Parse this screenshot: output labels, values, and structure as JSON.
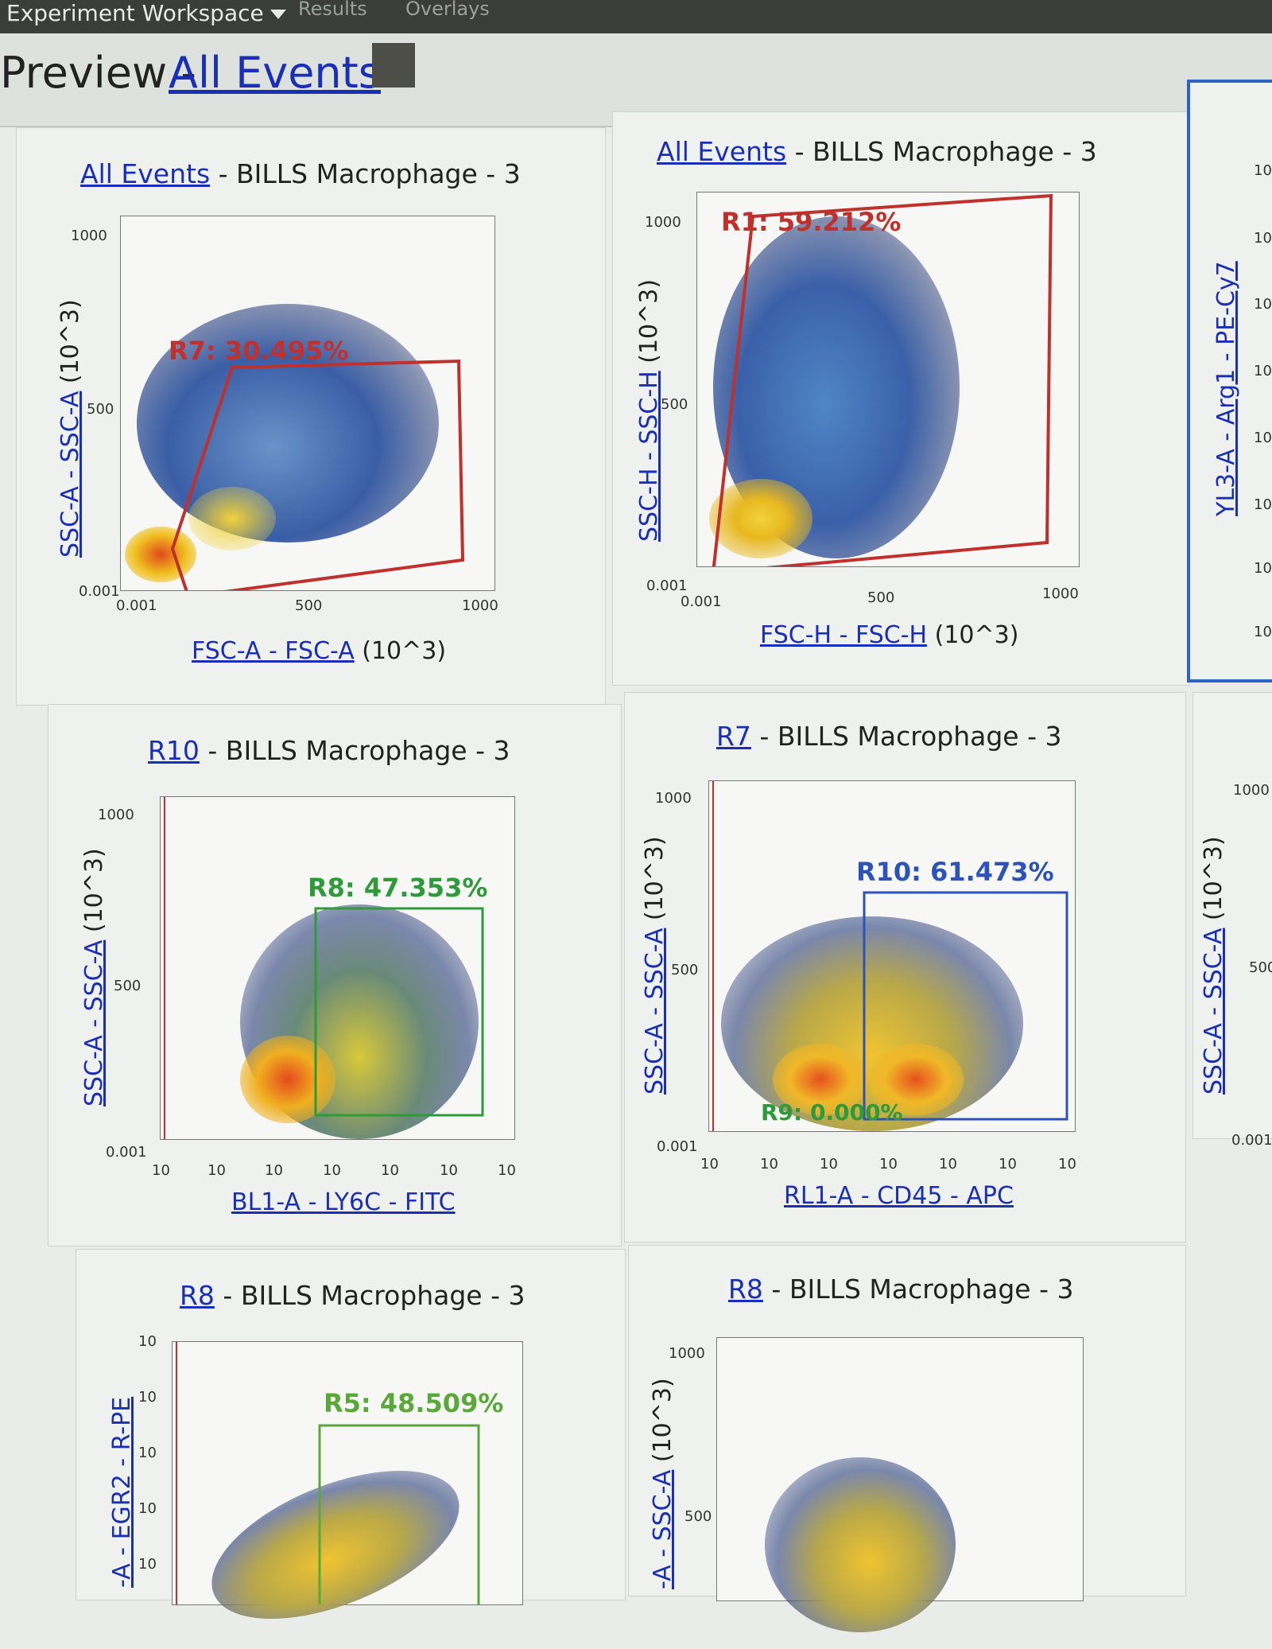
{
  "workspace": {
    "title": "Experiment Workspace",
    "tabs": [
      "Results",
      "Overlays"
    ]
  },
  "preview": {
    "label": "Preview - ",
    "link": "All Events"
  },
  "panels": [
    {
      "parent": "All Events",
      "sample": " - BILLS Macrophage - 3",
      "ylabel_link": "SSC-A - SSC-A",
      "ylabel_unit": " (10^3)",
      "xlabel_link": "FSC-A - FSC-A",
      "xlabel_unit": " (10^3)",
      "y_ticks": [
        "1000",
        "500",
        "0.001"
      ],
      "x_ticks": [
        "0.001",
        "500",
        "1000"
      ],
      "gate": "R7: 30.495%"
    },
    {
      "parent": "All Events",
      "sample": " - BILLS Macrophage - 3",
      "ylabel_link": "SSC-H - SSC-H",
      "ylabel_unit": " (10^3)",
      "xlabel_link": "FSC-H - FSC-H",
      "xlabel_unit": " (10^3)",
      "y_ticks": [
        "1000",
        "500",
        "0.001"
      ],
      "x_ticks": [
        "0.001",
        "500",
        "1000"
      ],
      "gate": "R1: 59.212%"
    },
    {
      "parent": "R10",
      "sample": " - BILLS Macrophage - 3",
      "ylabel_link": "SSC-A - SSC-A",
      "ylabel_unit": " (10^3)",
      "xlabel_link": "BL1-A - LY6C - FITC",
      "y_ticks": [
        "1000",
        "500",
        "0.001"
      ],
      "x_ticks": [
        "10",
        "10",
        "10",
        "10",
        "10",
        "10",
        "10"
      ],
      "gate": "R8: 47.353%"
    },
    {
      "parent": "R7",
      "sample": " - BILLS Macrophage - 3",
      "ylabel_link": "SSC-A - SSC-A",
      "ylabel_unit": " (10^3)",
      "xlabel_link": "RL1-A - CD45 - APC",
      "y_ticks": [
        "1000",
        "500",
        "0.001"
      ],
      "x_ticks": [
        "10",
        "10",
        "10",
        "10",
        "10",
        "10",
        "10"
      ],
      "gate": "R10: 61.473%",
      "gate2": "R9: 0.000%"
    },
    {
      "parent": "R8",
      "sample": " - BILLS Macrophage - 3",
      "ylabel_link": "-A - EGR2 - R-PE",
      "y_ticks": [
        "10",
        "10",
        "10",
        "10",
        "10"
      ],
      "gate": "R5: 48.509%"
    },
    {
      "parent": "R8",
      "sample": " - BILLS Macrophage - 3",
      "ylabel_link": "-A - SSC-A",
      "ylabel_unit": " (10^3)",
      "y_ticks": [
        "1000",
        "500"
      ]
    }
  ],
  "side": {
    "top_ylabel_link": "YL3-A - Arg1 - PE-Cy7",
    "top_ticks": [
      "10",
      "10",
      "10",
      "10",
      "10",
      "10",
      "10",
      "10"
    ],
    "mid_ylabel_link": "SSC-A - SSC-A",
    "mid_ylabel_unit": " (10^3)",
    "mid_ticks": [
      "1000",
      "500",
      "0.001"
    ]
  },
  "colors": {
    "link": "#1a2eb8",
    "gate_red": "#c0302c",
    "gate_green": "#2f9a3a",
    "gate_blue": "#2d52b8",
    "accent_border": "#2a64c8"
  }
}
